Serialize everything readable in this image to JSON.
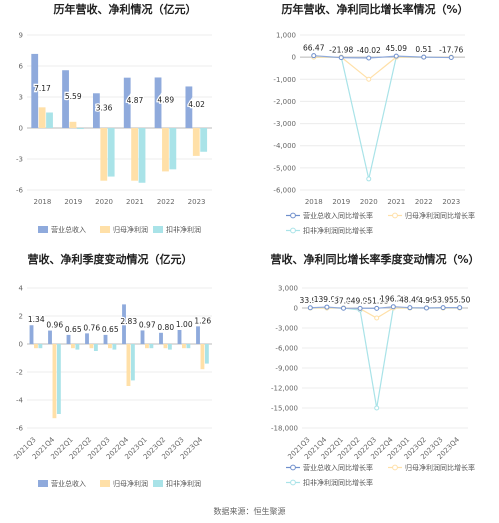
{
  "footer": "数据来源：恒生聚源",
  "colors": {
    "revenue": "#8FAADC",
    "parent": "#FFE0A8",
    "nonrec": "#A9E3E8"
  },
  "chart_data": [
    {
      "id": "c1",
      "type": "bar",
      "title": "历年营收、净利情况（亿元）",
      "categories": [
        "2018",
        "2019",
        "2020",
        "2021",
        "2022",
        "2023"
      ],
      "series": [
        {
          "name": "营业总收入",
          "values": [
            7.17,
            5.59,
            3.36,
            4.87,
            4.89,
            4.02
          ]
        },
        {
          "name": "归母净利润",
          "values": [
            2.0,
            0.6,
            -5.1,
            -5.1,
            -4.2,
            -2.7
          ]
        },
        {
          "name": "扣非净利润",
          "values": [
            1.5,
            -0.1,
            -4.7,
            -5.3,
            -4.0,
            -2.3
          ]
        }
      ],
      "labels": [
        "7.17",
        "5.59",
        "3.36",
        "4.87",
        "4.89",
        "4.02"
      ],
      "ylim": [
        -6,
        9
      ],
      "yticks": [
        "9",
        "6",
        "3",
        "0",
        "-3",
        "-6"
      ]
    },
    {
      "id": "c2",
      "type": "line",
      "title": "历年营收、净利同比增长率情况（%）",
      "categories": [
        "2018",
        "2019",
        "2020",
        "2021",
        "2022",
        "2023"
      ],
      "series": [
        {
          "name": "营业总收入同比增长率",
          "values": [
            66.47,
            -21.98,
            -40.02,
            45.09,
            0.51,
            -17.76
          ]
        },
        {
          "name": "归母净利润同比增长率",
          "values": [
            0,
            0,
            -1000,
            0,
            0,
            0
          ]
        },
        {
          "name": "扣非净利润同比增长率",
          "values": [
            0,
            0,
            -5500,
            0,
            0,
            0
          ]
        }
      ],
      "labels": [
        "66.47",
        "-21.98",
        "-40.02",
        "45.09",
        "0.51",
        "-17.76"
      ],
      "ylim": [
        -6000,
        1000
      ],
      "yticks": [
        "1,000",
        "0",
        "-1,000",
        "-2,000",
        "-3,000",
        "-4,000",
        "-5,000",
        "-6,000"
      ]
    },
    {
      "id": "c3",
      "type": "bar",
      "title": "营收、净利季度变动情况（亿元）",
      "categories": [
        "2021Q3",
        "2021Q4",
        "2022Q1",
        "2022Q2",
        "2022Q3",
        "2022Q4",
        "2023Q1",
        "2023Q2",
        "2023Q3",
        "2023Q4"
      ],
      "series": [
        {
          "name": "营业总收入",
          "values": [
            1.34,
            0.96,
            0.65,
            0.76,
            0.65,
            2.83,
            0.97,
            0.8,
            1.0,
            1.26
          ]
        },
        {
          "name": "归母净利润",
          "values": [
            -0.3,
            -5.3,
            -0.3,
            -0.3,
            -0.3,
            -3.0,
            -0.3,
            -0.3,
            -0.3,
            -1.8
          ]
        },
        {
          "name": "扣非净利润",
          "values": [
            -0.3,
            -5.0,
            -0.4,
            -0.5,
            -0.4,
            -2.6,
            -0.3,
            -0.4,
            -0.3,
            -1.4
          ]
        }
      ],
      "labels": [
        "1.34",
        "0.96",
        "0.65",
        "0.76",
        "0.65",
        "2.83",
        "0.97",
        "0.80",
        "1.00",
        "1.26"
      ],
      "ylim": [
        -6,
        4
      ],
      "yticks": [
        "4",
        "2",
        "0",
        "-2",
        "-4",
        "-6"
      ]
    },
    {
      "id": "c4",
      "type": "line",
      "title": "营收、净利同比增长率季度变动情况（%）",
      "categories": [
        "2021Q3",
        "2021Q4",
        "2022Q1",
        "2022Q2",
        "2022Q3",
        "2022Q4",
        "2023Q1",
        "2023Q2",
        "2023Q3",
        "2023Q4"
      ],
      "series": [
        {
          "name": "营业总收入同比增长率",
          "values": [
            33.91,
            139.03,
            -37.84,
            -49.93,
            -51.93,
            196.22,
            48.49,
            4.99,
            53.99,
            55.5
          ]
        },
        {
          "name": "归母净利润同比增长率",
          "values": [
            0,
            0,
            0,
            -100,
            -1500,
            0,
            0,
            0,
            0,
            0
          ]
        },
        {
          "name": "扣非净利润同比增长率",
          "values": [
            0,
            0,
            0,
            -300,
            -15000,
            0,
            0,
            0,
            0,
            0
          ]
        }
      ],
      "labels": [
        "33.91",
        "139.03",
        "-37.84",
        "-49.93",
        "-51.93",
        "196.22",
        "48.49",
        "4.99",
        "53.99",
        "55.50"
      ],
      "ylim": [
        -18000,
        3000
      ],
      "yticks": [
        "3,000",
        "0",
        "-3,000",
        "-6,000",
        "-9,000",
        "-12,000",
        "-15,000",
        "-18,000"
      ]
    }
  ]
}
